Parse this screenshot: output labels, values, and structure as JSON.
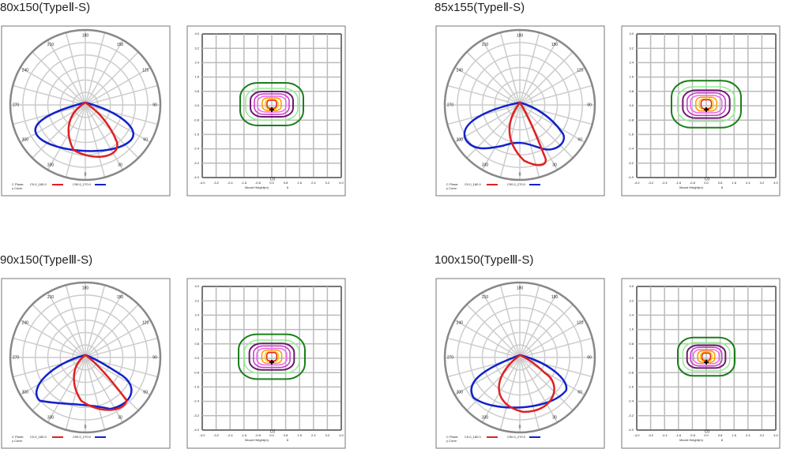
{
  "panels": [
    {
      "title": "80x150(TypeⅡ-S)",
      "polar": {
        "angle_labels": [
          "180",
          "150",
          "120",
          "90",
          "60",
          "30",
          "0",
          "330",
          "300",
          "270",
          "240",
          "210"
        ],
        "c_plane_label": "C Plane:",
        "cone_label": "γ Cone:",
        "series": [
          "C0.0_180.0",
          "C90.0_270.0"
        ]
      },
      "isolux": {
        "y_labels": [
          "4.0",
          "3.2",
          "2.4",
          "1.6",
          "0.8",
          "0.0",
          "-0.8",
          "-1.6",
          "-2.4",
          "-3.2",
          "-4.0"
        ],
        "x_labels": [
          "-4.0",
          "-3.2",
          "-2.4",
          "-1.6",
          "-0.8",
          "0.0",
          "0.8",
          "1.6",
          "2.4",
          "3.2",
          "4.0"
        ],
        "plane": "C0",
        "x_axis_label": "Mount Height(m)",
        "height": "6"
      }
    },
    {
      "title": "85x155(TypeⅡ-S)",
      "polar": {
        "angle_labels": [
          "180",
          "150",
          "120",
          "90",
          "60",
          "30",
          "0",
          "330",
          "300",
          "270",
          "240",
          "210"
        ],
        "c_plane_label": "C Plane:",
        "cone_label": "γ Cone:",
        "series": [
          "C0.0_180.0",
          "C90.0_270.0"
        ]
      },
      "isolux": {
        "y_labels": [
          "4.0",
          "3.2",
          "2.4",
          "1.6",
          "0.8",
          "0.0",
          "-0.8",
          "-1.6",
          "-2.4",
          "-3.2",
          "-4.0"
        ],
        "x_labels": [
          "-4.0",
          "-3.2",
          "-2.4",
          "-1.6",
          "-0.8",
          "0.0",
          "0.8",
          "1.6",
          "2.4",
          "3.2",
          "4.0"
        ],
        "plane": "C0",
        "x_axis_label": "Mount Height(m)",
        "height": "6"
      }
    },
    {
      "title": "90x150(TypeⅢ-S)",
      "polar": {
        "angle_labels": [
          "180",
          "150",
          "120",
          "90",
          "60",
          "30",
          "0",
          "330",
          "300",
          "270",
          "240",
          "210"
        ],
        "c_plane_label": "C Plane:",
        "cone_label": "γ Cone:",
        "series": [
          "C0.0_180.0",
          "C90.0_270.0"
        ]
      },
      "isolux": {
        "y_labels": [
          "4.0",
          "3.2",
          "2.4",
          "1.6",
          "0.8",
          "0.0",
          "-0.8",
          "-1.6",
          "-2.4",
          "-3.2",
          "-4.0"
        ],
        "x_labels": [
          "-4.0",
          "-3.2",
          "-2.4",
          "-1.6",
          "-0.8",
          "0.0",
          "0.8",
          "1.6",
          "2.4",
          "3.2",
          "4.0"
        ],
        "plane": "C0",
        "x_axis_label": "Mount Height(m)",
        "height": "6"
      }
    },
    {
      "title": "100x150(TypeⅢ-S)",
      "polar": {
        "angle_labels": [
          "180",
          "150",
          "120",
          "90",
          "60",
          "30",
          "0",
          "330",
          "300",
          "270",
          "240",
          "210"
        ],
        "c_plane_label": "C Plane:",
        "cone_label": "γ Cone:",
        "series": [
          "C0.0_180.0",
          "C90.0_270.0"
        ]
      },
      "isolux": {
        "y_labels": [
          "4.0",
          "3.2",
          "2.4",
          "1.6",
          "0.8",
          "0.0",
          "-0.8",
          "-1.6",
          "-2.4",
          "-3.2",
          "-4.0"
        ],
        "x_labels": [
          "-4.0",
          "-3.2",
          "-2.4",
          "-1.6",
          "-0.8",
          "0.0",
          "0.8",
          "1.6",
          "2.4",
          "3.2",
          "4.0"
        ],
        "plane": "C0",
        "x_axis_label": "Mount Height(m)",
        "height": "6"
      }
    }
  ]
}
